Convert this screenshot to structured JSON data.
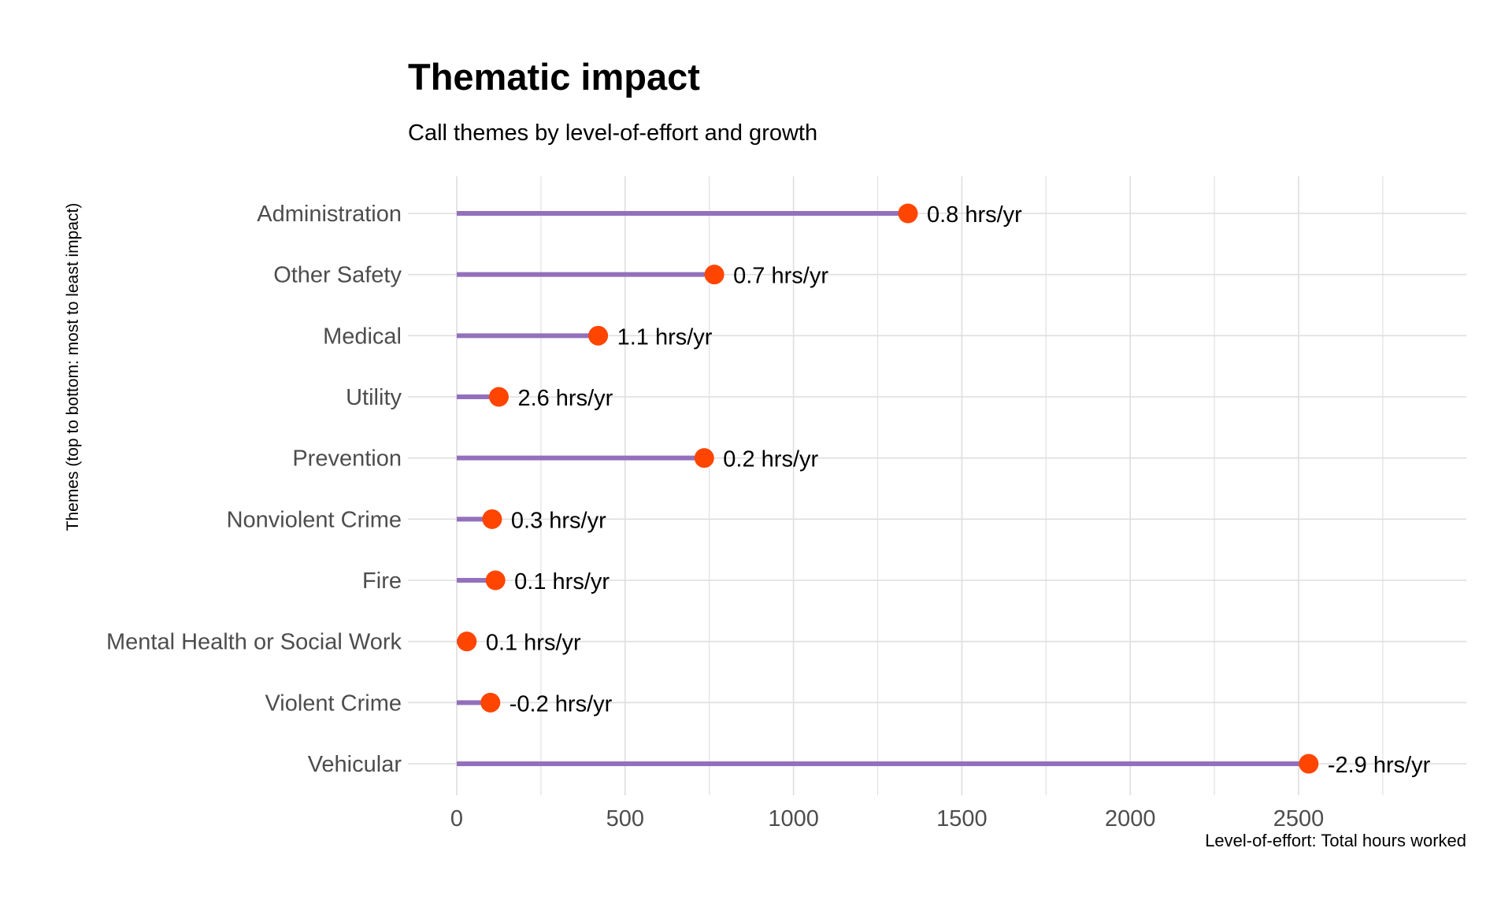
{
  "chart_data": {
    "type": "lollipop",
    "title": "Thematic impact",
    "subtitle": "Call themes by level-of-effort and growth",
    "xlabel": "Level-of-effort: Total hours worked",
    "ylabel": "Themes (top to bottom: most to least impact)",
    "xlim": [
      0,
      3040
    ],
    "x_ticks": [
      0,
      500,
      1000,
      1500,
      2000,
      2500
    ],
    "grid": true,
    "colors": {
      "stem": "#9370bb",
      "dot": "#ff4500",
      "grid": "#dedede"
    },
    "categories": [
      "Administration",
      "Other Safety",
      "Medical",
      "Utility",
      "Prevention",
      "Nonviolent Crime",
      "Fire",
      "Mental Health or Social Work",
      "Violent Crime",
      "Vehicular"
    ],
    "values": [
      1340,
      765,
      420,
      125,
      735,
      105,
      115,
      30,
      100,
      2530
    ],
    "labels": [
      "0.8 hrs/yr",
      "0.7 hrs/yr",
      "1.1 hrs/yr",
      "2.6 hrs/yr",
      "0.2 hrs/yr",
      "0.3 hrs/yr",
      "0.1 hrs/yr",
      "0.1 hrs/yr",
      "-0.2 hrs/yr",
      "-2.9 hrs/yr"
    ]
  }
}
